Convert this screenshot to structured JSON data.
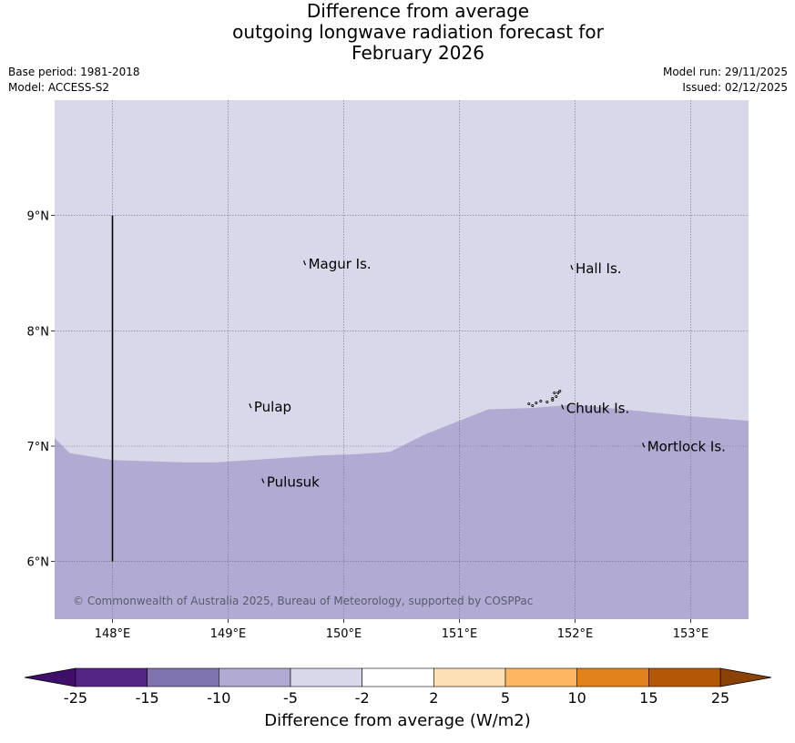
{
  "title": {
    "line1": "Difference from average",
    "line2": "outgoing longwave radiation forecast for",
    "line3": "February 2026"
  },
  "meta": {
    "base_period": "Base period: 1981-2018",
    "model": "Model: ACCESS-S2",
    "model_run": "Model run: 29/11/2025",
    "issued": "Issued: 02/12/2025"
  },
  "map": {
    "lon_range": [
      147.5,
      153.5
    ],
    "lat_range": [
      5.5,
      10.0
    ],
    "lon_ticks": [
      {
        "value": 148,
        "label": "148°E"
      },
      {
        "value": 149,
        "label": "149°E"
      },
      {
        "value": 150,
        "label": "150°E"
      },
      {
        "value": 151,
        "label": "151°E"
      },
      {
        "value": 152,
        "label": "152°E"
      },
      {
        "value": 153,
        "label": "153°E"
      }
    ],
    "lat_ticks": [
      {
        "value": 9,
        "label": "9°N"
      },
      {
        "value": 8,
        "label": "8°N"
      },
      {
        "value": 7,
        "label": "7°N"
      },
      {
        "value": 6,
        "label": "6°N"
      }
    ],
    "grid": true,
    "upper_region_color": "#d8d8ea",
    "lower_region_color": "#b1abd3",
    "region_boundary": [
      [
        147.5,
        7.07
      ],
      [
        147.63,
        6.94
      ],
      [
        148.0,
        6.88
      ],
      [
        148.3,
        6.87
      ],
      [
        148.6,
        6.86
      ],
      [
        148.9,
        6.86
      ],
      [
        149.2,
        6.88
      ],
      [
        149.5,
        6.9
      ],
      [
        149.8,
        6.92
      ],
      [
        150.1,
        6.93
      ],
      [
        150.4,
        6.95
      ],
      [
        150.7,
        7.1
      ],
      [
        151.0,
        7.22
      ],
      [
        151.25,
        7.32
      ],
      [
        151.6,
        7.33
      ],
      [
        152.0,
        7.36
      ],
      [
        152.5,
        7.31
      ],
      [
        153.0,
        7.26
      ],
      [
        153.5,
        7.22
      ]
    ],
    "transect": {
      "lon": 148.0,
      "lat_from": 9.0,
      "lat_to": 6.0
    },
    "islands": [
      {
        "name": "Magur Is.",
        "lon": 149.67,
        "lat": 8.57
      },
      {
        "name": "Hall Is.",
        "lon": 151.98,
        "lat": 8.53
      },
      {
        "name": "Pulap",
        "lon": 149.2,
        "lat": 7.33
      },
      {
        "name": "Chuuk Is.",
        "lon": 151.9,
        "lat": 7.32
      },
      {
        "name": "Mortlock Is.",
        "lon": 152.6,
        "lat": 6.99
      },
      {
        "name": "Pulusuk",
        "lon": 149.31,
        "lat": 6.68
      }
    ],
    "copyright": "© Commonwealth of Australia 2025, Bureau of Meteorology, supported by COSPPac"
  },
  "colorbar": {
    "label": "Difference from average (W/m2)",
    "ticks": [
      "-25",
      "-15",
      "-10",
      "-5",
      "-2",
      "2",
      "5",
      "10",
      "15",
      "25"
    ],
    "colors": [
      "#552586",
      "#7f74ae",
      "#b1abd3",
      "#d8d8ea",
      "#ffffff",
      "#fde0b6",
      "#fdb763",
      "#e1821b",
      "#b35806"
    ],
    "under_color": "#3f0f6b",
    "over_color": "#8a4305"
  }
}
